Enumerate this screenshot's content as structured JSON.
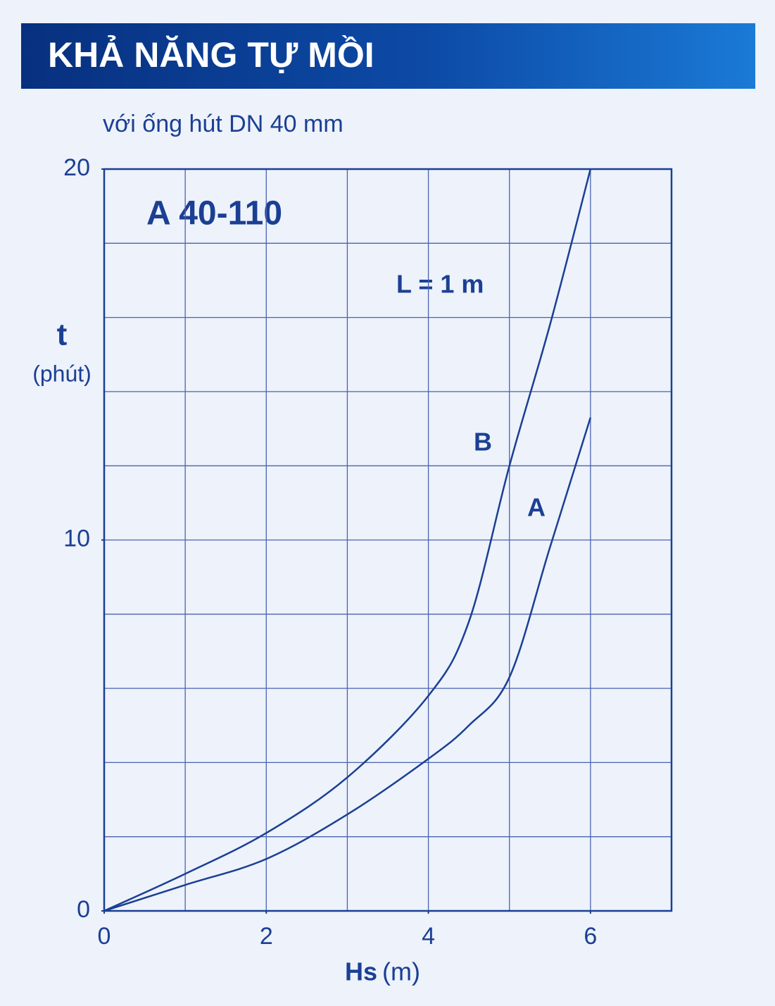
{
  "chart_data": {
    "type": "line",
    "title": "KHẢ NĂNG TỰ MỒI",
    "subtitle": "với ống hút DN 40 mm",
    "annotations": [
      "A 40-110",
      "L = 1 m"
    ],
    "xlabel": "Hs",
    "xunit": "(m)",
    "ylabel": "t",
    "yunit": "(phút)",
    "xlim": [
      0,
      7
    ],
    "ylim": [
      0,
      20
    ],
    "xticks": [
      0,
      2,
      4,
      6
    ],
    "yticks": [
      0,
      10,
      20
    ],
    "xgrid": [
      1,
      2,
      3,
      4,
      5,
      6
    ],
    "ygrid": [
      2,
      4,
      6,
      8,
      10,
      12,
      14,
      16,
      18
    ],
    "grid": true,
    "color": "#1b3f93",
    "series": [
      {
        "name": "B",
        "color": "#1b3f93",
        "x": [
          0,
          1,
          2,
          3,
          4,
          4.5,
          5,
          5.5,
          6
        ],
        "values": [
          0,
          1,
          2.1,
          3.6,
          5.8,
          7.8,
          12,
          15.8,
          20
        ]
      },
      {
        "name": "A",
        "color": "#1b3f93",
        "x": [
          0,
          1,
          2,
          3,
          4,
          4.5,
          5,
          5.5,
          6
        ],
        "values": [
          0,
          0.7,
          1.4,
          2.6,
          4.1,
          5,
          6.3,
          9.8,
          13.3
        ]
      }
    ]
  }
}
